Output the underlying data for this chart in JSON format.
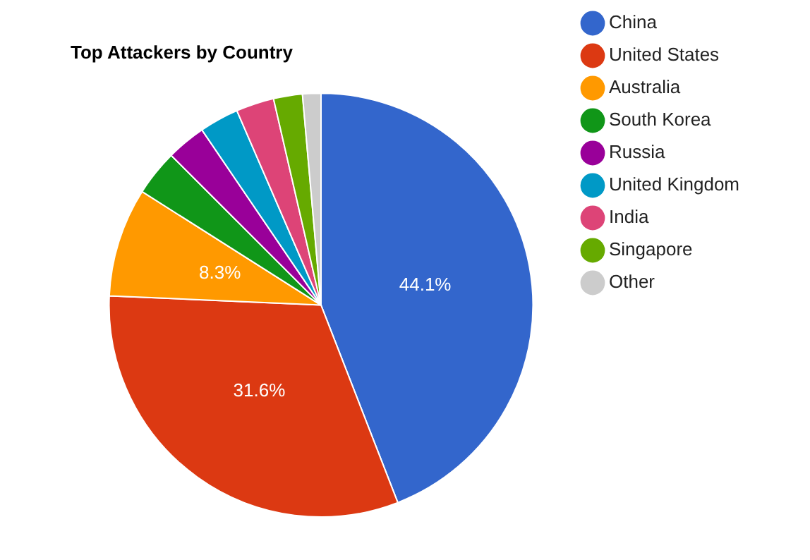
{
  "chart_data": {
    "type": "pie",
    "title": "Top Attackers by Country",
    "categories": [
      "China",
      "United States",
      "Australia",
      "South Korea",
      "Russia",
      "United Kingdom",
      "India",
      "Singapore",
      "Other"
    ],
    "values": [
      44.1,
      31.6,
      8.3,
      3.5,
      3.0,
      3.0,
      2.9,
      2.2,
      1.4
    ],
    "colors": [
      "#3366cc",
      "#dc3912",
      "#ff9900",
      "#109618",
      "#990099",
      "#0099c6",
      "#dd4477",
      "#66aa00",
      "#cccccc"
    ],
    "value_labels": [
      "44.1%",
      "31.6%",
      "8.3%",
      null,
      null,
      null,
      null,
      null,
      null
    ],
    "legend": "right"
  }
}
